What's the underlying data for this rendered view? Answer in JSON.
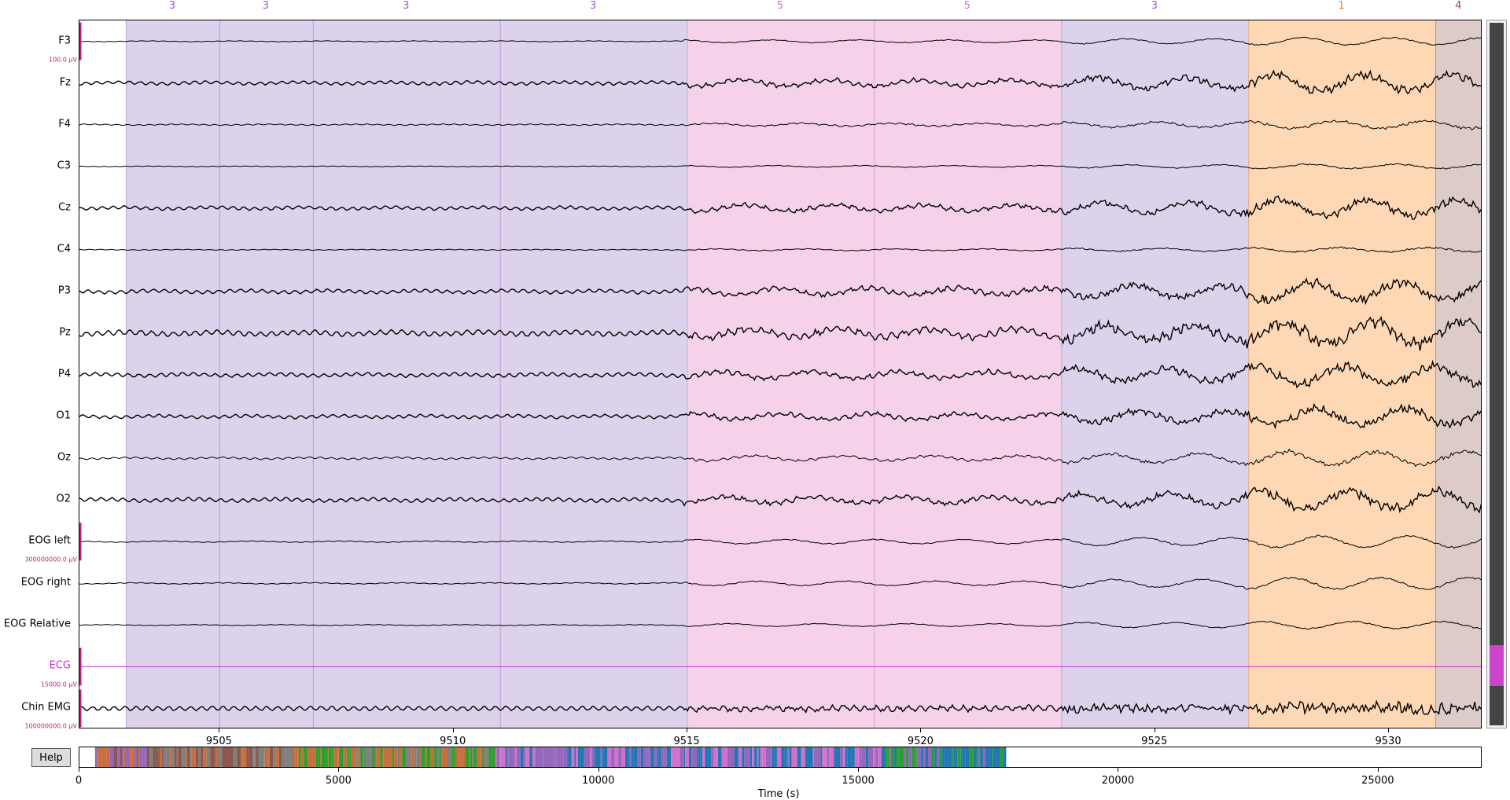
{
  "channels": [
    {
      "name": "F3",
      "scale": "100.0 µV",
      "amp": 1,
      "noise": 0.15,
      "color": "#000000"
    },
    {
      "name": "Fz",
      "scale": "",
      "amp": 2.2,
      "noise": 0.9,
      "color": "#000000"
    },
    {
      "name": "F4",
      "scale": "",
      "amp": 1,
      "noise": 0.3,
      "color": "#000000"
    },
    {
      "name": "C3",
      "scale": "",
      "amp": 0.6,
      "noise": 0.15,
      "color": "#000000"
    },
    {
      "name": "Cz",
      "scale": "",
      "amp": 2.2,
      "noise": 0.9,
      "color": "#000000"
    },
    {
      "name": "C4",
      "scale": "",
      "amp": 0.6,
      "noise": 0.2,
      "color": "#000000"
    },
    {
      "name": "P3",
      "scale": "",
      "amp": 2.5,
      "noise": 1,
      "color": "#000000"
    },
    {
      "name": "Pz",
      "scale": "",
      "amp": 3,
      "noise": 1.4,
      "color": "#000000"
    },
    {
      "name": "P4",
      "scale": "",
      "amp": 2.4,
      "noise": 1,
      "color": "#000000"
    },
    {
      "name": "O1",
      "scale": "",
      "amp": 2.2,
      "noise": 0.9,
      "color": "#000000"
    },
    {
      "name": "Oz",
      "scale": "",
      "amp": 1.8,
      "noise": 0.5,
      "color": "#000000"
    },
    {
      "name": "O2",
      "scale": "",
      "amp": 2.4,
      "noise": 1,
      "color": "#000000"
    },
    {
      "name": "EOG left",
      "scale": "300000000.0 µV",
      "amp": 1.6,
      "noise": 0.2,
      "color": "#000000"
    },
    {
      "name": "EOG right",
      "scale": "",
      "amp": 1.6,
      "noise": 0.2,
      "color": "#000000"
    },
    {
      "name": "EOG Relative",
      "scale": "",
      "amp": 1,
      "noise": 0.15,
      "color": "#000000"
    },
    {
      "name": "ECG",
      "scale": "15000.0 µV",
      "amp": 0,
      "noise": 0,
      "color": "#cc33cc"
    },
    {
      "name": "Chin EMG",
      "scale": "100000000.0 µV",
      "amp": 0.3,
      "noise": 1.2,
      "color": "#000000"
    }
  ],
  "stages": [
    {
      "start": 9503.0,
      "end": 9505.0,
      "label": "3",
      "color": "#dcd2ec",
      "text_color": "#9b59d0"
    },
    {
      "start": 9505.0,
      "end": 9507.0,
      "label": "3",
      "color": "#dcd2ec",
      "text_color": "#9b59d0"
    },
    {
      "start": 9507.0,
      "end": 9511.0,
      "label": "3",
      "color": "#dcd2ec",
      "text_color": "#9b59d0"
    },
    {
      "start": 9511.0,
      "end": 9515.0,
      "label": "3",
      "color": "#dcd2ec",
      "text_color": "#9b59d0"
    },
    {
      "start": 9515.0,
      "end": 9519.0,
      "label": "5",
      "color": "#f5d2ea",
      "text_color": "#d870c8"
    },
    {
      "start": 9519.0,
      "end": 9523.0,
      "label": "5",
      "color": "#f5d2ea",
      "text_color": "#d870c8"
    },
    {
      "start": 9523.0,
      "end": 9527.0,
      "label": "3",
      "color": "#dcd2ec",
      "text_color": "#9b59d0"
    },
    {
      "start": 9527.0,
      "end": 9531.0,
      "label": "1",
      "color": "#fed8b4",
      "text_color": "#ee7d22"
    },
    {
      "start": 9531.0,
      "end": 9532.0,
      "label": "4",
      "color": "#dccbc8",
      "text_color": "#9a4a3c"
    }
  ],
  "time_axis": {
    "min": 9502.0,
    "max": 9532.0,
    "ticks": [
      "9505",
      "9510",
      "9515",
      "9520",
      "9525",
      "9530"
    ]
  },
  "hypnogram": {
    "min": 0,
    "max": 27000,
    "ticks": [
      "0",
      "5000",
      "10000",
      "15000",
      "20000",
      "25000"
    ],
    "axis_title": "Time (s)"
  },
  "help_label": "Help"
}
